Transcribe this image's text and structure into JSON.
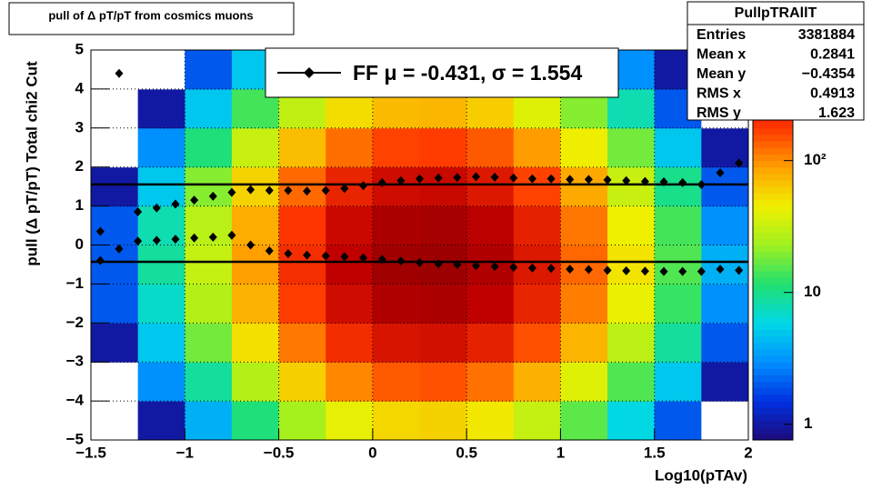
{
  "chart_data": {
    "type": "heatmap",
    "title": "pull of Δ pT/pT from cosmics muons",
    "x_label": "Log10(pTAv)",
    "y_label": "pull (Δ pT/pT)  Total chi2 Cut",
    "xlim": [
      -1.5,
      2
    ],
    "ylim": [
      -5,
      5
    ],
    "xticks": [
      {
        "value": -1.5,
        "label": "−1.5"
      },
      {
        "value": -1,
        "label": "−1"
      },
      {
        "value": -0.5,
        "label": "−0.5"
      },
      0,
      0.5,
      1,
      1.5,
      2
    ],
    "yticks": [
      {
        "value": -5,
        "label": "−5"
      },
      {
        "value": -4,
        "label": "−4"
      },
      {
        "value": -3,
        "label": "−3"
      },
      {
        "value": -2,
        "label": "−2"
      },
      {
        "value": -1,
        "label": "−1"
      },
      0,
      1,
      2,
      3,
      4,
      5
    ],
    "grid": true,
    "xbins": [
      -1.5,
      -1.25,
      -1,
      -0.75,
      -0.5,
      -0.25,
      0,
      0.25,
      0.5,
      0.75,
      1,
      1.25,
      1.5,
      1.75,
      2
    ],
    "ybins": [
      -5,
      -4,
      -3,
      -2,
      -1,
      0,
      1,
      2,
      3,
      4,
      5
    ],
    "z": [
      [
        0.2,
        1,
        4,
        11,
        24,
        42,
        56,
        59,
        49,
        31,
        16,
        6,
        2,
        0.4
      ],
      [
        0.6,
        3,
        9,
        27,
        60,
        105,
        141,
        149,
        122,
        78,
        39,
        15,
        5,
        1
      ],
      [
        1,
        5,
        18,
        52,
        116,
        203,
        273,
        287,
        235,
        151,
        75,
        29,
        9,
        2
      ],
      [
        2,
        7,
        27,
        77,
        172,
        301,
        404,
        426,
        348,
        224,
        112,
        43,
        13,
        3
      ],
      [
        2,
        9,
        31,
        90,
        200,
        350,
        470,
        495,
        405,
        260,
        130,
        50,
        15,
        4
      ],
      [
        2,
        8,
        28,
        81,
        180,
        315,
        423,
        446,
        365,
        234,
        117,
        45,
        14,
        3
      ],
      [
        1,
        5,
        20,
        58,
        128,
        224,
        301,
        317,
        259,
        166,
        83,
        32,
        10,
        2
      ],
      [
        0.6,
        3,
        11,
        32,
        70,
        123,
        165,
        173,
        142,
        91,
        46,
        18,
        5,
        1
      ],
      [
        0.3,
        1,
        5,
        14,
        30,
        53,
        71,
        74,
        61,
        39,
        20,
        8,
        2,
        0.5
      ],
      [
        0.1,
        0.4,
        2,
        5,
        10,
        18,
        24,
        25,
        20,
        13,
        7,
        3,
        1,
        0.2
      ]
    ],
    "zlog": true,
    "zlim": [
      0.76,
      690
    ],
    "zticks": [
      1,
      10,
      {
        "value": 100,
        "label": "10²"
      }
    ],
    "palette": [
      "#1c0a7a",
      "#0030e0",
      "#0090ff",
      "#00d8e8",
      "#20e070",
      "#a0f020",
      "#f0f000",
      "#ffa000",
      "#ff3800",
      "#c00000",
      "#7a0000"
    ],
    "x": [
      -1.45,
      -1.35,
      -1.25,
      -1.15,
      -1.05,
      -0.95,
      -0.85,
      -0.75,
      -0.65,
      -0.55,
      -0.45,
      -0.35,
      -0.25,
      -0.15,
      -0.05,
      0.05,
      0.15,
      0.25,
      0.35,
      0.45,
      0.55,
      0.65,
      0.75,
      0.85,
      0.95,
      1.05,
      1.15,
      1.25,
      1.35,
      1.45,
      1.55,
      1.65,
      1.75,
      1.85,
      1.95
    ],
    "series": [
      {
        "color": "#000000",
        "values": [
          -0.4,
          -0.1,
          0.1,
          0.12,
          0.15,
          0.18,
          0.2,
          0.25,
          0.0,
          -0.15,
          -0.22,
          -0.26,
          -0.28,
          -0.3,
          -0.33,
          -0.37,
          -0.41,
          -0.45,
          -0.48,
          -0.5,
          -0.53,
          -0.55,
          -0.57,
          -0.59,
          -0.6,
          -0.62,
          -0.63,
          -0.65,
          -0.66,
          -0.67,
          -0.68,
          -0.68,
          -0.68,
          -0.62,
          -0.65
        ]
      },
      {
        "color": "#000000",
        "values": [
          0.35,
          4.4,
          0.85,
          0.95,
          1.05,
          1.15,
          1.25,
          1.35,
          1.42,
          1.4,
          1.4,
          1.38,
          1.4,
          1.45,
          1.52,
          1.6,
          1.65,
          1.7,
          1.72,
          1.73,
          1.75,
          1.74,
          1.72,
          1.7,
          1.7,
          1.68,
          1.68,
          1.67,
          1.65,
          1.63,
          1.62,
          1.6,
          1.55,
          1.85,
          2.1
        ]
      }
    ],
    "fit": {
      "mu": -0.431,
      "sigma": 1.554
    },
    "legend": "FF μ = -0.431, σ =   1.554",
    "stats": {
      "title": "PullpTRAllT",
      "rows": [
        {
          "name": "Entries",
          "value": "3381884"
        },
        {
          "name": "Mean x",
          "value": "0.2841"
        },
        {
          "name": "Mean y",
          "value": "−0.4354"
        },
        {
          "name": "RMS x",
          "value": "0.4913"
        },
        {
          "name": "RMS y",
          "value": "1.623"
        }
      ]
    }
  }
}
